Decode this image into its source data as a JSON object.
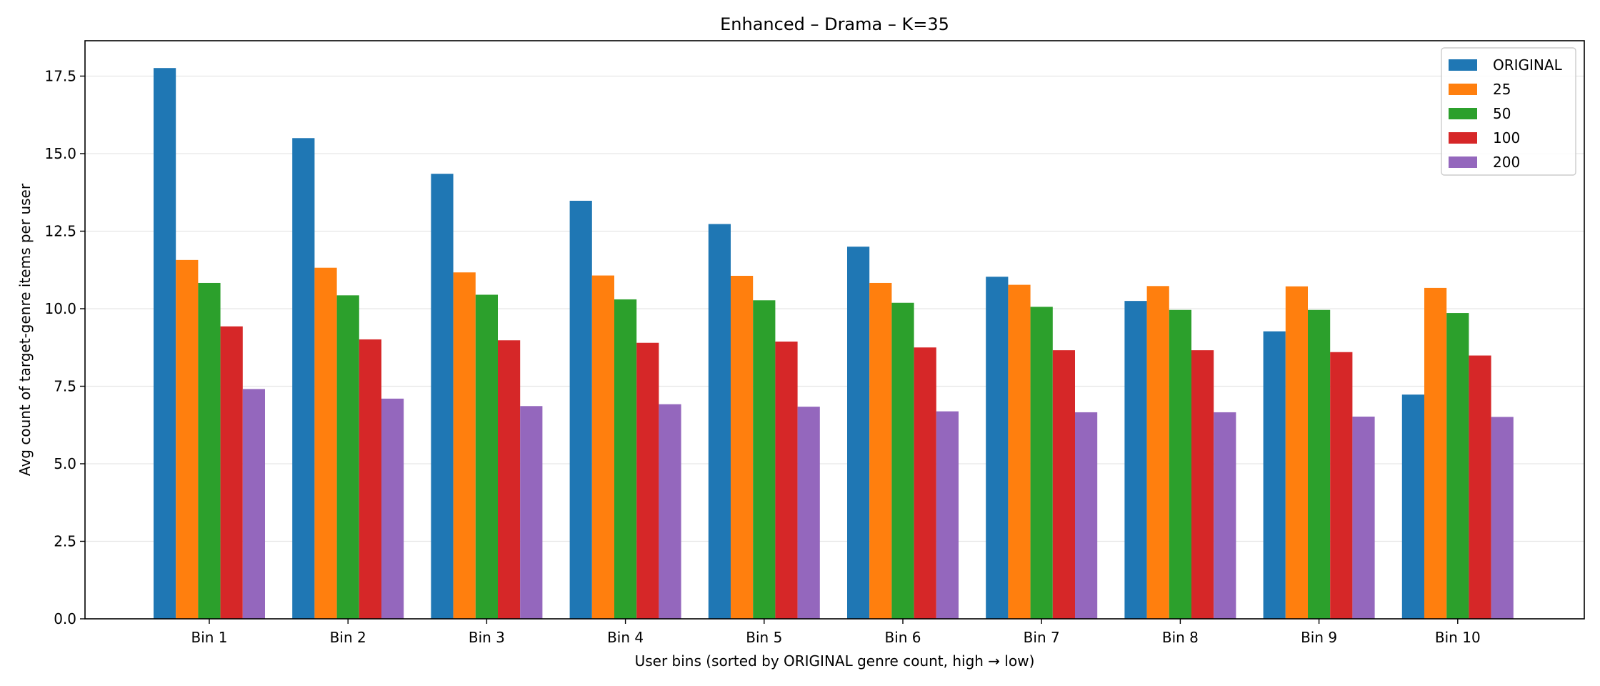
{
  "chart_data": {
    "type": "bar",
    "title": "Enhanced – Drama – K=35",
    "xlabel": "User bins (sorted by ORIGINAL genre count, high → low)",
    "ylabel": "Avg count of target-genre items per user",
    "categories": [
      "Bin 1",
      "Bin 2",
      "Bin 3",
      "Bin 4",
      "Bin 5",
      "Bin 6",
      "Bin 7",
      "Bin 8",
      "Bin 9",
      "Bin 10"
    ],
    "series": [
      {
        "name": "ORIGINAL",
        "color": "#1f77b4",
        "values": [
          17.76,
          15.5,
          14.35,
          13.48,
          12.73,
          12.0,
          11.03,
          10.25,
          9.27,
          7.23
        ]
      },
      {
        "name": "25",
        "color": "#ff7f0e",
        "values": [
          11.57,
          11.32,
          11.17,
          11.07,
          11.06,
          10.83,
          10.77,
          10.73,
          10.72,
          10.67
        ]
      },
      {
        "name": "50",
        "color": "#2ca02c",
        "values": [
          10.83,
          10.43,
          10.45,
          10.3,
          10.27,
          10.19,
          10.06,
          9.96,
          9.96,
          9.86
        ]
      },
      {
        "name": "100",
        "color": "#d62728",
        "values": [
          9.43,
          9.01,
          8.98,
          8.9,
          8.94,
          8.75,
          8.66,
          8.66,
          8.6,
          8.49
        ]
      },
      {
        "name": "200",
        "color": "#9467bd",
        "values": [
          7.41,
          7.1,
          6.86,
          6.92,
          6.84,
          6.69,
          6.66,
          6.66,
          6.52,
          6.51
        ]
      }
    ],
    "ylim": [
      0,
      18.64
    ],
    "yticks": [
      0.0,
      2.5,
      5.0,
      7.5,
      10.0,
      12.5,
      15.0,
      17.5
    ],
    "ytick_labels": [
      "0.0",
      "2.5",
      "5.0",
      "7.5",
      "10.0",
      "12.5",
      "15.0",
      "17.5"
    ],
    "grid": "horizontal",
    "legend_position": "top-right"
  }
}
